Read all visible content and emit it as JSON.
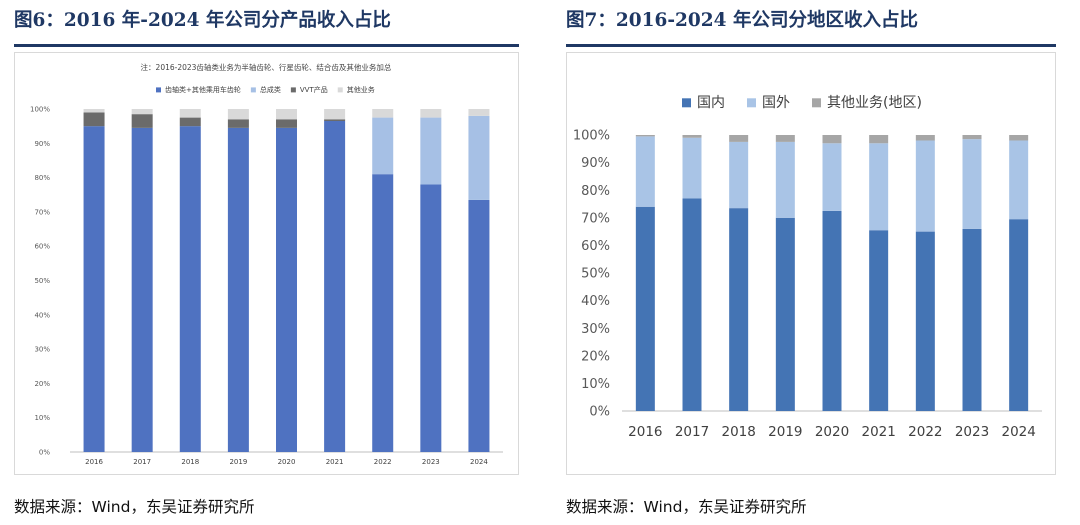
{
  "fig6": {
    "title": "图6：2016 年-2024 年公司分产品收入占比",
    "source": "数据来源：Wind，东吴证券研究所"
  },
  "fig7": {
    "title": "图7：2016-2024 年公司分地区收入占比",
    "source": "数据来源：Wind，东吴证券研究所"
  },
  "chart_data": [
    {
      "type": "bar",
      "stacked": true,
      "note": "注：2016-2023齿轴类业务为半轴齿轮、行星齿轮、结合齿及其他业务加总",
      "categories": [
        "2016",
        "2017",
        "2018",
        "2019",
        "2020",
        "2021",
        "2022",
        "2023",
        "2024"
      ],
      "series": [
        {
          "name": "齿轴类+其他乘用车齿轮",
          "color": "#4f72c1",
          "values": [
            95,
            94.5,
            95,
            94.5,
            94.5,
            96.5,
            81,
            78,
            73.5
          ]
        },
        {
          "name": "总成类",
          "color": "#a6c0e5",
          "values": [
            0,
            0,
            0,
            0,
            0,
            0,
            16.5,
            19.5,
            24.5
          ]
        },
        {
          "name": "VVT产品",
          "color": "#6b6b6b",
          "values": [
            4,
            4,
            2.5,
            2.5,
            2.5,
            0.5,
            0,
            0,
            0
          ]
        },
        {
          "name": "其他业务",
          "color": "#d9d9d9",
          "values": [
            1,
            1.5,
            2.5,
            3,
            3,
            3,
            2.5,
            2.5,
            2
          ]
        }
      ],
      "yticks": [
        "0%",
        "10%",
        "20%",
        "30%",
        "40%",
        "50%",
        "60%",
        "70%",
        "80%",
        "90%",
        "100%"
      ],
      "ylim": [
        0,
        100
      ],
      "legend": "top",
      "grid": false
    },
    {
      "type": "bar",
      "stacked": true,
      "categories": [
        "2016",
        "2017",
        "2018",
        "2019",
        "2020",
        "2021",
        "2022",
        "2023",
        "2024"
      ],
      "series": [
        {
          "name": "国内",
          "color": "#4474b4",
          "values": [
            74,
            77,
            73.5,
            70,
            72.5,
            65.5,
            65,
            66,
            69.5
          ]
        },
        {
          "name": "国外",
          "color": "#a9c4e6",
          "values": [
            25.5,
            22,
            24,
            27.5,
            24.5,
            31.5,
            33,
            32.5,
            28.5
          ]
        },
        {
          "name": "其他业务(地区)",
          "color": "#a6a6a6",
          "values": [
            0.5,
            1,
            2.5,
            2.5,
            3,
            3,
            2,
            1.5,
            2
          ]
        }
      ],
      "yticks": [
        "0%",
        "10%",
        "20%",
        "30%",
        "40%",
        "50%",
        "60%",
        "70%",
        "80%",
        "90%",
        "100%"
      ],
      "ylim": [
        0,
        100
      ],
      "legend": "top",
      "grid": false
    }
  ]
}
